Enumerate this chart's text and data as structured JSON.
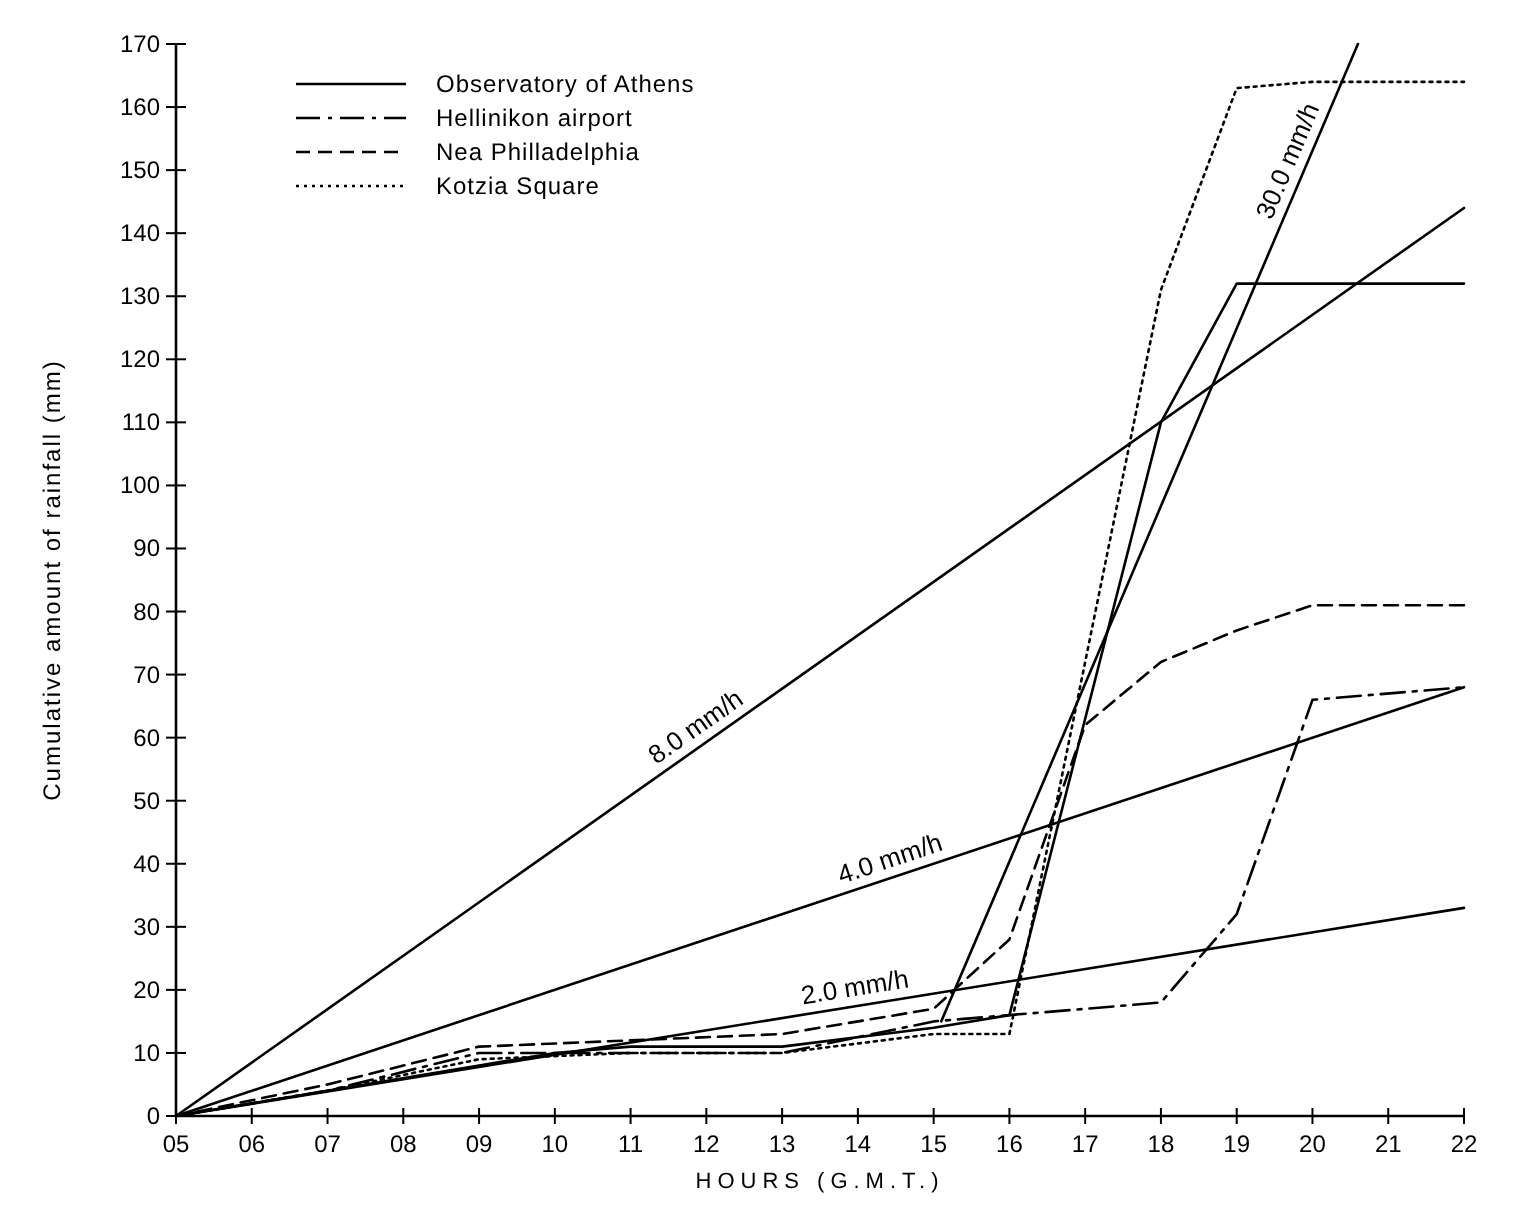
{
  "chart_data": {
    "type": "line",
    "xlabel": "HOURS (G.M.T.)",
    "ylabel": "Cumulative amount of rainfall  (mm)",
    "xlim": [
      5,
      22
    ],
    "ylim": [
      0,
      170
    ],
    "xticks": [
      {
        "value": 5,
        "label": "05"
      },
      {
        "value": 6,
        "label": "06"
      },
      {
        "value": 7,
        "label": "07"
      },
      {
        "value": 8,
        "label": "08"
      },
      {
        "value": 9,
        "label": "09"
      },
      10,
      11,
      12,
      13,
      14,
      15,
      16,
      17,
      18,
      19,
      20,
      21,
      22
    ],
    "yticks": [
      0,
      10,
      20,
      30,
      40,
      50,
      60,
      70,
      80,
      90,
      100,
      110,
      120,
      130,
      140,
      150,
      160,
      170
    ],
    "grid": false,
    "legend": "top left",
    "marker": "none",
    "series": [
      {
        "name": "Observatory of Athens",
        "color": "#000000",
        "line_style": "solid",
        "x": [
          5,
          7,
          9,
          10,
          11,
          13,
          15,
          16,
          18,
          19,
          20,
          22
        ],
        "values": [
          0,
          4,
          8,
          10,
          11,
          11,
          14,
          16,
          110,
          132,
          132,
          132
        ]
      },
      {
        "name": "Hellinikon airport",
        "color": "#000000",
        "line_style": "dashdot",
        "x": [
          5,
          7,
          9,
          11,
          13,
          15,
          16,
          18,
          19,
          20,
          22
        ],
        "values": [
          0,
          4,
          10,
          10,
          10,
          15,
          16,
          18,
          32,
          66,
          68
        ]
      },
      {
        "name": "Nea Philladelphia",
        "color": "#000000",
        "line_style": "dashed",
        "x": [
          5,
          7,
          9,
          11,
          13,
          15,
          16,
          17,
          18,
          19,
          20,
          22
        ],
        "values": [
          0,
          5,
          11,
          12,
          13,
          17,
          28,
          62,
          72,
          77,
          81,
          81
        ]
      },
      {
        "name": "Kotzia Square",
        "color": "#000000",
        "line_style": "dotted",
        "x": [
          5,
          7,
          9,
          11,
          13,
          15,
          16,
          18,
          19,
          20,
          22
        ],
        "values": [
          0,
          4,
          9,
          10,
          10,
          13,
          13,
          131,
          163,
          164,
          164
        ]
      },
      {
        "color": "#000000",
        "line_style": "solid",
        "x": [
          5,
          22
        ],
        "values": [
          0,
          33
        ]
      },
      {
        "color": "#000000",
        "line_style": "solid",
        "x": [
          5,
          22
        ],
        "values": [
          0,
          68
        ]
      },
      {
        "color": "#000000",
        "line_style": "solid",
        "x": [
          5,
          22
        ],
        "values": [
          0,
          144
        ]
      },
      {
        "color": "#000000",
        "line_style": "solid",
        "x": [
          15.1,
          20.6
        ],
        "values": [
          15,
          170
        ]
      }
    ],
    "annotations": [
      {
        "text": "2.0 mm/h",
        "x": 14,
        "y": 17.5
      },
      {
        "text": "4.0 mm/h",
        "x": 14.5,
        "y": 38
      },
      {
        "text": "8.0 mm/h",
        "x": 12,
        "y": 59.3
      },
      {
        "text": "30.0 mm/h",
        "x": 19.9,
        "y": 150.3
      }
    ]
  }
}
